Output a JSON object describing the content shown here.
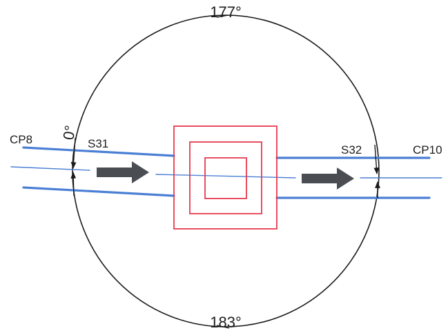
{
  "labels": {
    "angle_top": "177°",
    "angle_bottom": "183°",
    "angle_left": "0°",
    "point_left": "CP8",
    "point_right": "CP10",
    "section_left": "S31",
    "section_right": "S32"
  },
  "colors": {
    "circle": "#1a1a1a",
    "pipe": "#4a7fd4",
    "frame": "#e8384f",
    "flow_arrow": "#4a4e52"
  },
  "icons": {
    "flow_arrow": "flow-direction-arrow-icon",
    "angle_mark": "angle-mark-arrow-icon"
  }
}
